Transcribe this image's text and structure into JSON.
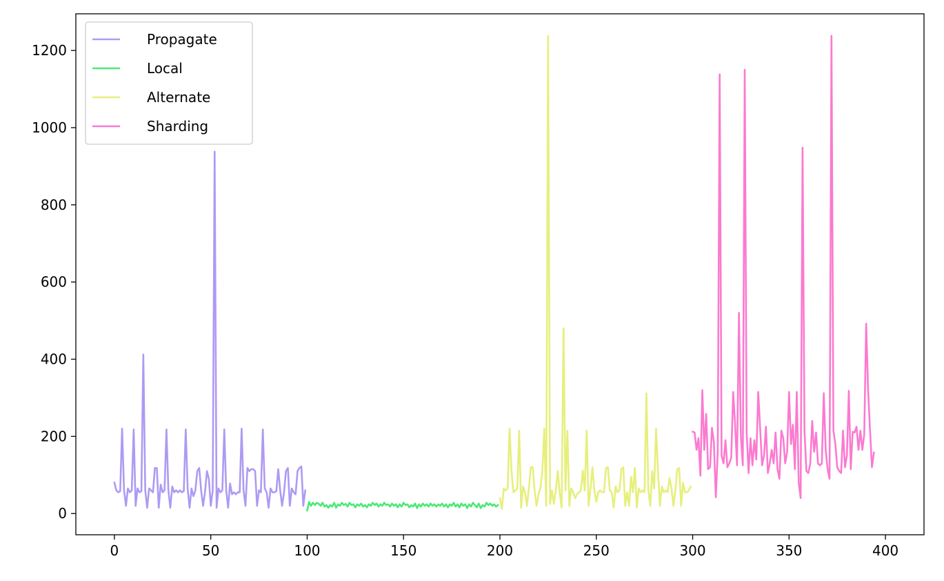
{
  "chart_data": {
    "type": "line",
    "title": "",
    "xlabel": "",
    "ylabel": "",
    "xlim": [
      -20,
      420
    ],
    "ylim": [
      -55,
      1295
    ],
    "xticks": [
      0,
      50,
      100,
      150,
      200,
      250,
      300,
      350,
      400
    ],
    "yticks": [
      0,
      200,
      400,
      600,
      800,
      1000,
      1200
    ],
    "grid": false,
    "legend_position": "top-left",
    "series": [
      {
        "name": "Propagate",
        "color": "#ae9af3",
        "x_start": 0,
        "values": [
          80,
          60,
          55,
          58,
          220,
          60,
          20,
          65,
          55,
          60,
          218,
          20,
          65,
          55,
          58,
          412,
          60,
          15,
          65,
          60,
          55,
          118,
          118,
          15,
          75,
          55,
          60,
          218,
          60,
          15,
          70,
          55,
          60,
          55,
          60,
          55,
          58,
          218,
          65,
          15,
          65,
          45,
          60,
          110,
          118,
          60,
          20,
          55,
          110,
          90,
          20,
          60,
          938,
          15,
          65,
          55,
          60,
          218,
          60,
          15,
          78,
          50,
          55,
          50,
          55,
          55,
          220,
          60,
          20,
          118,
          110,
          115,
          115,
          110,
          20,
          60,
          55,
          218,
          65,
          55,
          15,
          65,
          55,
          55,
          58,
          115,
          60,
          20,
          55,
          110,
          118,
          20,
          65,
          55,
          50,
          110,
          118,
          122,
          20,
          60
        ]
      },
      {
        "name": "Local",
        "color": "#4ce876",
        "x_start": 100,
        "values": [
          8,
          30,
          20,
          28,
          22,
          28,
          25,
          20,
          28,
          18,
          22,
          15,
          22,
          18,
          28,
          15,
          24,
          20,
          28,
          22,
          25,
          18,
          28,
          22,
          24,
          16,
          24,
          20,
          26,
          18,
          22,
          16,
          24,
          20,
          28,
          22,
          26,
          18,
          24,
          20,
          28,
          22,
          24,
          18,
          26,
          20,
          24,
          16,
          24,
          18,
          28,
          22,
          24,
          16,
          22,
          18,
          26,
          14,
          24,
          18,
          26,
          20,
          24,
          18,
          26,
          20,
          24,
          18,
          24,
          20,
          26,
          18,
          24,
          16,
          24,
          20,
          28,
          18,
          24,
          16,
          26,
          20,
          24,
          14,
          24,
          18,
          28,
          22,
          16,
          26,
          14,
          22,
          18,
          28,
          22,
          26,
          20,
          24,
          18,
          22
        ]
      },
      {
        "name": "Alternate",
        "color": "#e6ef7c",
        "x_start": 200,
        "values": [
          40,
          12,
          65,
          60,
          65,
          220,
          110,
          55,
          60,
          65,
          215,
          15,
          70,
          55,
          20,
          65,
          120,
          120,
          60,
          20,
          50,
          65,
          110,
          220,
          20,
          1238,
          25,
          60,
          25,
          60,
          110,
          55,
          15,
          480,
          60,
          215,
          20,
          65,
          55,
          40,
          50,
          55,
          60,
          112,
          60,
          215,
          20,
          65,
          120,
          60,
          30,
          55,
          60,
          55,
          55,
          118,
          120,
          60,
          55,
          15,
          70,
          55,
          60,
          115,
          120,
          20,
          55,
          20,
          95,
          55,
          118,
          15,
          65,
          55,
          60,
          55,
          312,
          60,
          20,
          110,
          65,
          220,
          110,
          20,
          70,
          55,
          60,
          55,
          92,
          65,
          20,
          60,
          115,
          118,
          20,
          80,
          55,
          55,
          60,
          70
        ]
      },
      {
        "name": "Sharding",
        "color": "#fb7ad0",
        "x_start": 300,
        "values": [
          212,
          210,
          165,
          195,
          98,
          320,
          165,
          258,
          115,
          120,
          222,
          185,
          42,
          160,
          1138,
          150,
          130,
          190,
          120,
          130,
          145,
          315,
          230,
          125,
          520,
          200,
          125,
          1150,
          210,
          105,
          195,
          125,
          190,
          140,
          315,
          220,
          125,
          150,
          225,
          105,
          130,
          165,
          130,
          210,
          115,
          90,
          215,
          195,
          130,
          160,
          315,
          180,
          230,
          115,
          315,
          80,
          40,
          948,
          215,
          110,
          105,
          130,
          240,
          160,
          210,
          130,
          125,
          130,
          312,
          165,
          115,
          90,
          1238,
          215,
          180,
          120,
          110,
          105,
          215,
          120,
          150,
          318,
          115,
          212,
          210,
          225,
          165,
          215,
          165,
          205,
          492,
          320,
          215,
          120,
          158
        ]
      }
    ]
  }
}
